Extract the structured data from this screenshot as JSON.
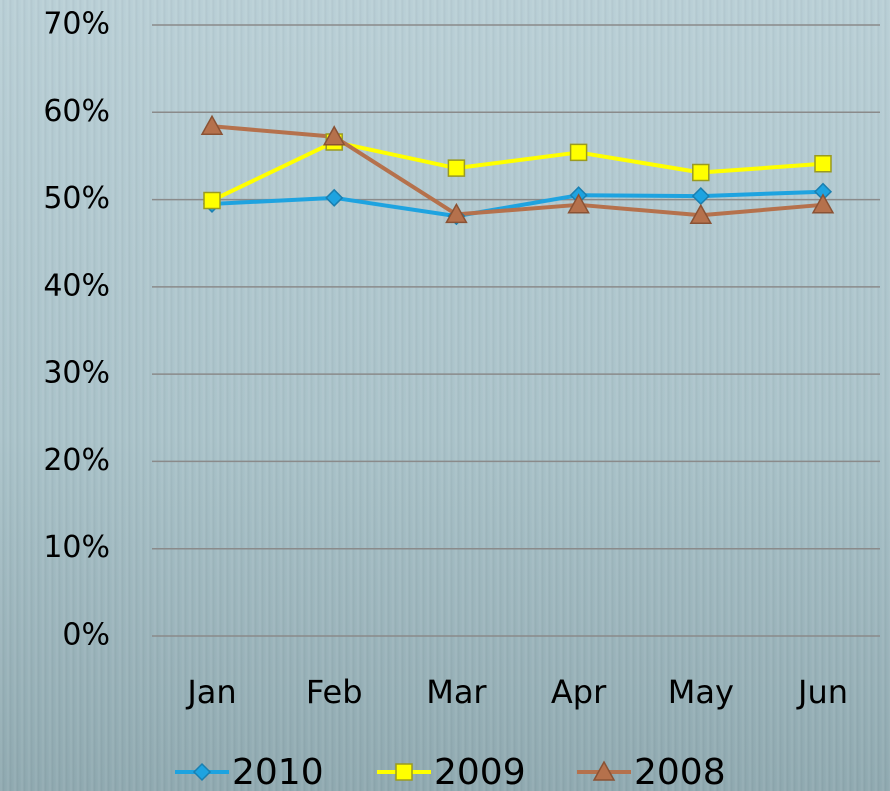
{
  "chart_data": {
    "type": "line",
    "categories": [
      "Jan",
      "Feb",
      "Mar",
      "Apr",
      "May",
      "Jun"
    ],
    "series": [
      {
        "name": "2010",
        "color": "#1ea3e0",
        "values": [
          49.5,
          50.2,
          48.1,
          50.5,
          50.4,
          50.9
        ]
      },
      {
        "name": "2009",
        "color": "#ffff00",
        "values": [
          49.9,
          56.6,
          53.6,
          55.4,
          53.1,
          54.1
        ]
      },
      {
        "name": "2008",
        "color": "#b5714c",
        "values": [
          58.4,
          57.2,
          48.3,
          49.4,
          48.2,
          49.4
        ]
      }
    ],
    "ylim": [
      0,
      70
    ],
    "yticks": [
      {
        "value": 0,
        "label": "0%"
      },
      {
        "value": 10,
        "label": "10%"
      },
      {
        "value": 20,
        "label": "20%"
      },
      {
        "value": 30,
        "label": "30%"
      },
      {
        "value": 40,
        "label": "40%"
      },
      {
        "value": 50,
        "label": "50%"
      },
      {
        "value": 60,
        "label": "60%"
      },
      {
        "value": 70,
        "label": "70%"
      }
    ],
    "grid": true,
    "legend": "bottom"
  }
}
